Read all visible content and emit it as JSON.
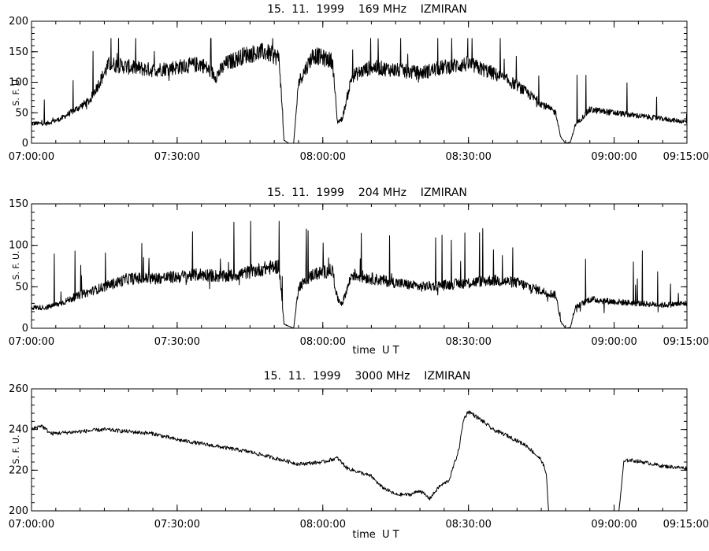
{
  "chart_data": [
    {
      "type": "line",
      "title": "15.  11.  1999    169 MHz    IZMIRAN",
      "ylabel": "S. F. U.",
      "xlabel": "",
      "xlim": [
        "07:00:00",
        "09:15:00"
      ],
      "ylim": [
        0,
        200
      ],
      "xticks": [
        "07:00:00",
        "07:30:00",
        "08:00:00",
        "08:30:00",
        "09:00:00",
        "09:15:00"
      ],
      "yticks": [
        "0",
        "50",
        "100",
        "150",
        "200"
      ],
      "grid": false,
      "series": [
        {
          "x": [
            "07:00:00",
            "07:03:00",
            "07:06:00",
            "07:09:00",
            "07:12:00",
            "07:14:00",
            "07:16:00",
            "07:20:00",
            "07:25:00",
            "07:30:00",
            "07:35:00",
            "07:38:00",
            "07:40:00",
            "07:44:00",
            "07:48:00",
            "07:51:00",
            "07:52:00",
            "07:53:00",
            "07:54:00",
            "07:55:00",
            "07:58:00",
            "08:02:00",
            "08:03:00",
            "08:04:00",
            "08:06:00",
            "08:10:00",
            "08:15:00",
            "08:20:00",
            "08:25:00",
            "08:30:00",
            "08:35:00",
            "08:40:00",
            "08:45:00",
            "08:48:00",
            "08:49:00",
            "08:50:00",
            "08:51:00",
            "08:52:00",
            "08:55:00",
            "09:00:00",
            "09:05:00",
            "09:10:00",
            "09:15:00"
          ],
          "values": [
            33,
            32,
            40,
            55,
            70,
            100,
            130,
            125,
            120,
            125,
            130,
            110,
            130,
            145,
            150,
            140,
            5,
            0,
            0,
            100,
            145,
            135,
            35,
            40,
            110,
            125,
            120,
            115,
            125,
            130,
            115,
            95,
            65,
            50,
            10,
            0,
            2,
            30,
            55,
            50,
            45,
            40,
            35
          ]
        }
      ]
    },
    {
      "type": "line",
      "title": "15.  11.  1999    204 MHz    IZMIRAN",
      "ylabel": "S. F. U.",
      "xlabel": "time  U T",
      "xlim": [
        "07:00:00",
        "09:15:00"
      ],
      "ylim": [
        0,
        150
      ],
      "xticks": [
        "07:00:00",
        "07:30:00",
        "08:00:00",
        "08:30:00",
        "09:00:00",
        "09:15:00"
      ],
      "yticks": [
        "0",
        "50",
        "100",
        "150"
      ],
      "grid": false,
      "series": [
        {
          "x": [
            "07:00:00",
            "07:03:00",
            "07:06:00",
            "07:10:00",
            "07:15:00",
            "07:20:00",
            "07:25:00",
            "07:30:00",
            "07:35:00",
            "07:40:00",
            "07:45:00",
            "07:48:00",
            "07:51:00",
            "07:52:00",
            "07:54:00",
            "07:55:00",
            "07:58:00",
            "08:02:00",
            "08:03:00",
            "08:04:00",
            "08:06:00",
            "08:10:00",
            "08:15:00",
            "08:20:00",
            "08:25:00",
            "08:30:00",
            "08:35:00",
            "08:40:00",
            "08:45:00",
            "08:48:00",
            "08:49:00",
            "08:50:00",
            "08:51:00",
            "08:52:00",
            "08:55:00",
            "09:00:00",
            "09:05:00",
            "09:10:00",
            "09:15:00"
          ],
          "values": [
            25,
            25,
            30,
            40,
            50,
            60,
            60,
            62,
            65,
            62,
            68,
            72,
            75,
            5,
            0,
            50,
            65,
            70,
            35,
            30,
            65,
            60,
            55,
            50,
            52,
            55,
            58,
            55,
            45,
            40,
            8,
            0,
            1,
            25,
            35,
            32,
            30,
            28,
            30
          ]
        }
      ]
    },
    {
      "type": "line",
      "title": "15.  11.  1999    3000 MHz    IZMIRAN",
      "ylabel": "S. F. U.",
      "xlabel": "time  U T",
      "xlim": [
        "07:00:00",
        "09:15:00"
      ],
      "ylim": [
        200,
        260
      ],
      "xticks": [
        "07:00:00",
        "07:30:00",
        "08:00:00",
        "08:30:00",
        "09:00:00",
        "09:15:00"
      ],
      "yticks": [
        "200",
        "220",
        "240",
        "260"
      ],
      "grid": false,
      "series": [
        {
          "x": [
            "07:00:00",
            "07:02:00",
            "07:04:00",
            "07:10:00",
            "07:15:00",
            "07:20:00",
            "07:25:00",
            "07:30:00",
            "07:35:00",
            "07:40:00",
            "07:45:00",
            "07:50:00",
            "07:55:00",
            "08:00:00",
            "08:03:00",
            "08:05:00",
            "08:10:00",
            "08:12:00",
            "08:15:00",
            "08:18:00",
            "08:20:00",
            "08:22:00",
            "08:24:00",
            "08:26:00",
            "08:28:00",
            "08:29:00",
            "08:30:00",
            "08:33:00",
            "08:35:00",
            "08:38:00",
            "08:42:00",
            "08:45:00",
            "08:46:00",
            "08:46:30"
          ],
          "values": [
            240,
            242,
            238,
            239,
            240,
            239,
            238,
            235,
            233,
            231,
            229,
            226,
            223,
            224,
            226,
            221,
            217,
            212,
            208,
            208,
            210,
            206,
            212,
            215,
            230,
            245,
            249,
            244,
            240,
            237,
            232,
            225,
            219,
            200
          ]
        },
        {
          "x": [
            "09:01:00",
            "09:02:00",
            "09:03:00",
            "09:06:00",
            "09:10:00",
            "09:15:00"
          ],
          "values": [
            200,
            224,
            225,
            224,
            222,
            221
          ]
        }
      ]
    }
  ]
}
